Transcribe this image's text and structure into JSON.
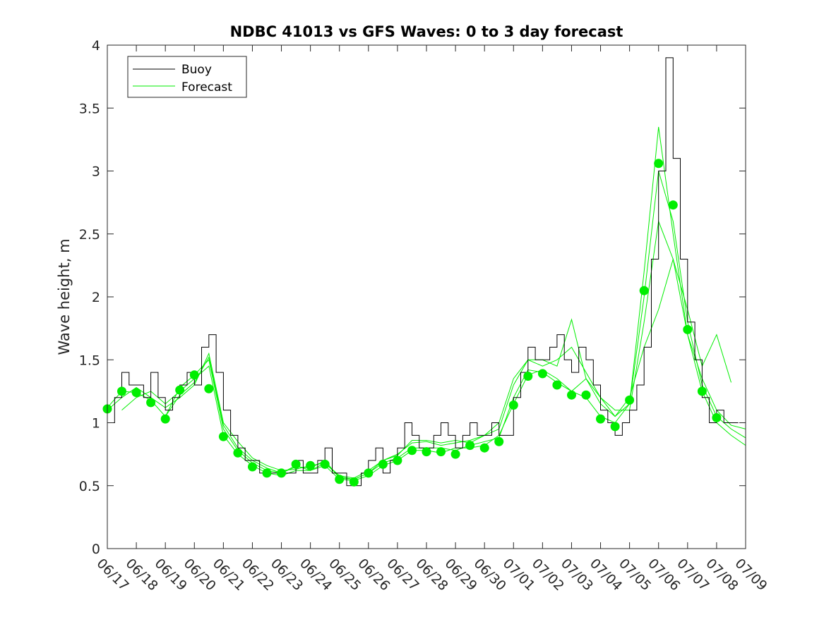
{
  "chart_data": {
    "type": "line",
    "title": "NDBC 41013 vs GFS Waves: 0 to 3 day forecast",
    "xlabel": "",
    "ylabel": "Wave height, m",
    "xlim": [
      "06/17",
      "07/09"
    ],
    "ylim": [
      0,
      4
    ],
    "x_tick_labels": [
      "06/17",
      "06/18",
      "06/19",
      "06/20",
      "06/21",
      "06/22",
      "06/23",
      "06/24",
      "06/25",
      "06/26",
      "06/27",
      "06/28",
      "06/29",
      "06/30",
      "07/01",
      "07/02",
      "07/03",
      "07/04",
      "07/05",
      "07/06",
      "07/07",
      "07/08",
      "07/09"
    ],
    "y_ticks": [
      0,
      0.5,
      1,
      1.5,
      2,
      2.5,
      3,
      3.5,
      4
    ],
    "y_tick_labels": [
      "0",
      "0.5",
      "1",
      "1.5",
      "2",
      "2.5",
      "3",
      "3.5",
      "4"
    ],
    "legend": {
      "placement": "top-left",
      "entries": [
        {
          "label": "Buoy",
          "color": "#000000"
        },
        {
          "label": "Forecast",
          "color": "#00ee00"
        }
      ]
    },
    "buoy": {
      "name": "Buoy",
      "color": "#000000",
      "x": [
        "06/17 00:00",
        "06/17 06:00",
        "06/17 12:00",
        "06/17 18:00",
        "06/18 00:00",
        "06/18 06:00",
        "06/18 12:00",
        "06/18 18:00",
        "06/19 00:00",
        "06/19 06:00",
        "06/19 12:00",
        "06/19 18:00",
        "06/20 00:00",
        "06/20 06:00",
        "06/20 12:00",
        "06/20 18:00",
        "06/21 00:00",
        "06/21 06:00",
        "06/21 12:00",
        "06/21 18:00",
        "06/22 00:00",
        "06/22 06:00",
        "06/22 12:00",
        "06/22 18:00",
        "06/23 00:00",
        "06/23 06:00",
        "06/23 12:00",
        "06/23 18:00",
        "06/24 00:00",
        "06/24 06:00",
        "06/24 12:00",
        "06/24 18:00",
        "06/25 00:00",
        "06/25 06:00",
        "06/25 12:00",
        "06/25 18:00",
        "06/26 00:00",
        "06/26 06:00",
        "06/26 12:00",
        "06/26 18:00",
        "06/27 00:00",
        "06/27 06:00",
        "06/27 12:00",
        "06/27 18:00",
        "06/28 00:00",
        "06/28 06:00",
        "06/28 12:00",
        "06/28 18:00",
        "06/29 00:00",
        "06/29 06:00",
        "06/29 12:00",
        "06/29 18:00",
        "06/30 00:00",
        "06/30 06:00",
        "06/30 12:00",
        "06/30 18:00",
        "07/01 00:00",
        "07/01 06:00",
        "07/01 12:00",
        "07/01 18:00",
        "07/02 00:00",
        "07/02 06:00",
        "07/02 12:00",
        "07/02 18:00",
        "07/03 00:00",
        "07/03 06:00",
        "07/03 12:00",
        "07/03 18:00",
        "07/04 00:00",
        "07/04 06:00",
        "07/04 12:00",
        "07/04 18:00",
        "07/05 00:00",
        "07/05 06:00",
        "07/05 12:00",
        "07/05 18:00",
        "07/06 00:00",
        "07/06 06:00",
        "07/06 12:00",
        "07/06 18:00",
        "07/07 00:00",
        "07/07 06:00",
        "07/07 12:00",
        "07/07 18:00",
        "07/08 00:00",
        "07/08 06:00",
        "07/08 12:00"
      ],
      "y": [
        1.0,
        1.2,
        1.4,
        1.3,
        1.3,
        1.2,
        1.4,
        1.2,
        1.1,
        1.2,
        1.3,
        1.4,
        1.3,
        1.6,
        1.7,
        1.4,
        1.1,
        0.9,
        0.8,
        0.7,
        0.7,
        0.6,
        0.6,
        0.6,
        0.6,
        0.6,
        0.7,
        0.6,
        0.6,
        0.7,
        0.8,
        0.6,
        0.6,
        0.5,
        0.5,
        0.6,
        0.7,
        0.8,
        0.6,
        0.7,
        0.8,
        1.0,
        0.9,
        0.8,
        0.8,
        0.9,
        1.0,
        0.9,
        0.8,
        0.9,
        1.0,
        0.9,
        0.9,
        1.0,
        0.9,
        0.9,
        1.2,
        1.4,
        1.6,
        1.5,
        1.5,
        1.6,
        1.7,
        1.5,
        1.4,
        1.6,
        1.5,
        1.3,
        1.1,
        1.0,
        0.9,
        1.0,
        1.1,
        1.3,
        1.6,
        2.3,
        3.0,
        3.9,
        3.1,
        2.3,
        1.8,
        1.5,
        1.2,
        1.0,
        1.1,
        1.0,
        1.0
      ]
    },
    "forecast_series": [
      {
        "name": "Forecast",
        "color": "#00ee00",
        "x": [
          "06/17 00:00",
          "06/17 12:00",
          "06/18 00:00",
          "06/18 12:00",
          "06/19 00:00",
          "06/19 12:00",
          "06/20 00:00",
          "06/20 12:00",
          "06/21 00:00",
          "06/21 12:00",
          "06/22 00:00",
          "06/22 12:00",
          "06/23 00:00",
          "06/23 12:00",
          "06/24 00:00",
          "06/24 12:00",
          "06/25 00:00",
          "06/25 12:00",
          "06/26 00:00",
          "06/26 12:00",
          "06/27 00:00",
          "06/27 12:00",
          "06/28 00:00",
          "06/28 12:00",
          "06/29 00:00",
          "06/29 12:00",
          "06/30 00:00",
          "06/30 12:00",
          "07/01 00:00",
          "07/01 12:00",
          "07/02 00:00",
          "07/02 12:00",
          "07/03 00:00",
          "07/03 12:00",
          "07/04 00:00",
          "07/04 12:00",
          "07/05 00:00",
          "07/05 12:00",
          "07/06 00:00",
          "07/06 12:00",
          "07/07 00:00",
          "07/07 12:00",
          "07/08 00:00",
          "07/08 12:00",
          "07/09 00:00"
        ],
        "y": [
          1.12,
          1.25,
          1.24,
          1.18,
          1.05,
          1.28,
          1.38,
          1.5,
          0.95,
          0.78,
          0.68,
          0.62,
          0.6,
          0.65,
          0.64,
          0.7,
          0.56,
          0.55,
          0.6,
          0.68,
          0.72,
          0.8,
          0.8,
          0.8,
          0.78,
          0.82,
          0.85,
          0.88,
          1.2,
          1.42,
          1.4,
          1.32,
          1.25,
          1.2,
          1.05,
          1.0,
          1.15,
          2.0,
          3.0,
          2.6,
          1.8,
          1.3,
          1.05,
          0.95,
          0.88
        ]
      },
      {
        "name": "Forecast",
        "color": "#00ee00",
        "x": [
          "06/17 00:00",
          "06/17 12:00",
          "06/18 00:00",
          "06/18 12:00",
          "06/19 00:00",
          "06/19 12:00",
          "06/20 00:00",
          "06/20 12:00",
          "06/21 00:00",
          "06/21 12:00",
          "06/22 00:00",
          "06/22 12:00",
          "06/23 00:00",
          "06/23 12:00",
          "06/24 00:00",
          "06/24 12:00",
          "06/25 00:00",
          "06/25 12:00",
          "06/26 00:00",
          "06/26 12:00",
          "06/27 00:00",
          "06/27 12:00",
          "06/28 00:00",
          "06/28 12:00",
          "06/29 00:00",
          "06/29 12:00",
          "06/30 00:00",
          "06/30 12:00",
          "07/01 00:00",
          "07/01 12:00",
          "07/02 00:00",
          "07/02 12:00",
          "07/03 00:00",
          "07/03 12:00",
          "07/04 00:00",
          "07/04 12:00",
          "07/05 00:00",
          "07/05 12:00",
          "07/06 00:00",
          "07/06 12:00",
          "07/07 00:00",
          "07/07 12:00",
          "07/08 00:00",
          "07/08 12:00",
          "07/09 00:00"
        ],
        "y": [
          1.1,
          1.2,
          1.28,
          1.2,
          1.12,
          1.2,
          1.3,
          1.55,
          1.0,
          0.85,
          0.72,
          0.66,
          0.62,
          0.63,
          0.66,
          0.68,
          0.58,
          0.56,
          0.62,
          0.7,
          0.75,
          0.84,
          0.85,
          0.82,
          0.84,
          0.86,
          0.9,
          0.95,
          1.3,
          1.5,
          1.45,
          1.5,
          1.6,
          1.4,
          1.2,
          1.1,
          1.1,
          1.8,
          2.6,
          2.3,
          1.7,
          1.35,
          1.1,
          0.98,
          0.95
        ]
      },
      {
        "name": "Forecast",
        "color": "#00ee00",
        "x": [
          "06/17 12:00",
          "06/18 00:00",
          "06/18 12:00",
          "06/19 00:00",
          "06/19 12:00",
          "06/20 00:00",
          "06/20 12:00",
          "06/21 00:00",
          "06/21 12:00",
          "06/22 00:00",
          "06/22 12:00",
          "06/23 00:00",
          "06/23 12:00",
          "06/24 00:00",
          "06/24 12:00",
          "06/25 00:00",
          "06/25 12:00",
          "06/26 00:00",
          "06/26 12:00",
          "06/27 00:00",
          "06/27 12:00",
          "06/28 00:00",
          "06/28 12:00",
          "06/29 00:00",
          "06/29 12:00",
          "06/30 00:00",
          "06/30 12:00",
          "07/01 00:00",
          "07/01 12:00",
          "07/02 00:00",
          "07/02 12:00",
          "07/03 00:00",
          "07/03 12:00",
          "07/04 00:00",
          "07/04 12:00",
          "07/05 00:00",
          "07/05 12:00",
          "07/06 00:00",
          "07/06 12:00",
          "07/07 00:00",
          "07/07 12:00",
          "07/08 00:00",
          "07/08 12:00",
          "07/09 00:00"
        ],
        "y": [
          1.1,
          1.2,
          1.25,
          1.15,
          1.25,
          1.35,
          1.45,
          0.9,
          0.75,
          0.66,
          0.6,
          0.58,
          0.62,
          0.62,
          0.66,
          0.55,
          0.54,
          0.58,
          0.66,
          0.7,
          0.78,
          0.78,
          0.76,
          0.8,
          0.8,
          0.82,
          0.9,
          1.15,
          1.38,
          1.42,
          1.35,
          1.25,
          1.35,
          1.15,
          1.05,
          1.15,
          2.2,
          3.35,
          2.5,
          1.7,
          1.25,
          1.0,
          0.9,
          0.82
        ]
      },
      {
        "name": "Forecast",
        "color": "#00ee00",
        "x": [
          "06/19 00:00",
          "06/19 12:00",
          "06/20 00:00",
          "06/20 12:00",
          "06/21 00:00",
          "06/21 12:00",
          "06/22 00:00",
          "06/22 12:00",
          "06/23 00:00",
          "06/23 12:00",
          "06/24 00:00",
          "06/24 12:00",
          "06/25 00:00",
          "06/25 12:00",
          "06/26 00:00",
          "06/26 12:00",
          "06/27 00:00",
          "06/27 12:00",
          "06/28 00:00",
          "06/28 12:00",
          "06/29 00:00",
          "06/29 12:00",
          "06/30 00:00",
          "06/30 12:00",
          "07/01 00:00",
          "07/01 12:00",
          "07/02 00:00",
          "07/02 12:00",
          "07/03 00:00",
          "07/03 12:00",
          "07/04 00:00",
          "07/04 12:00",
          "07/05 00:00",
          "07/05 12:00",
          "07/06 00:00",
          "07/06 12:00",
          "07/07 00:00",
          "07/07 12:00",
          "07/08 00:00",
          "07/08 12:00"
        ],
        "y": [
          1.05,
          1.22,
          1.32,
          1.52,
          0.98,
          0.8,
          0.7,
          0.64,
          0.6,
          0.66,
          0.62,
          0.68,
          0.57,
          0.55,
          0.6,
          0.7,
          0.74,
          0.86,
          0.86,
          0.84,
          0.86,
          0.84,
          0.9,
          1.0,
          1.35,
          1.5,
          1.5,
          1.45,
          1.82,
          1.35,
          1.2,
          1.05,
          1.2,
          1.6,
          1.9,
          2.3,
          1.9,
          1.45,
          1.7,
          1.32
        ]
      }
    ],
    "forecast_points": {
      "name": "Forecast",
      "color": "#00ee00",
      "x": [
        "06/17 00:00",
        "06/17 12:00",
        "06/18 00:00",
        "06/18 12:00",
        "06/19 00:00",
        "06/19 12:00",
        "06/20 00:00",
        "06/20 12:00",
        "06/21 00:00",
        "06/21 12:00",
        "06/22 00:00",
        "06/22 12:00",
        "06/23 00:00",
        "06/23 12:00",
        "06/24 00:00",
        "06/24 12:00",
        "06/25 00:00",
        "06/25 12:00",
        "06/26 00:00",
        "06/26 12:00",
        "06/27 00:00",
        "06/27 12:00",
        "06/28 00:00",
        "06/28 12:00",
        "06/29 00:00",
        "06/29 12:00",
        "06/30 00:00",
        "06/30 12:00",
        "07/01 00:00",
        "07/01 12:00",
        "07/02 00:00",
        "07/02 12:00",
        "07/03 00:00",
        "07/03 12:00",
        "07/04 00:00",
        "07/04 12:00",
        "07/05 00:00",
        "07/05 12:00",
        "07/06 00:00",
        "07/06 12:00",
        "07/07 00:00",
        "07/07 12:00",
        "07/08 00:00"
      ],
      "y": [
        1.11,
        1.25,
        1.24,
        1.16,
        1.03,
        1.26,
        1.38,
        1.27,
        0.89,
        0.76,
        0.65,
        0.6,
        0.6,
        0.67,
        0.66,
        0.67,
        0.55,
        0.53,
        0.6,
        0.67,
        0.7,
        0.78,
        0.77,
        0.77,
        0.75,
        0.82,
        0.8,
        0.85,
        1.14,
        1.37,
        1.39,
        1.3,
        1.22,
        1.22,
        1.03,
        0.97,
        1.18,
        2.05,
        3.06,
        2.73,
        1.74,
        1.25,
        1.04
      ]
    }
  }
}
